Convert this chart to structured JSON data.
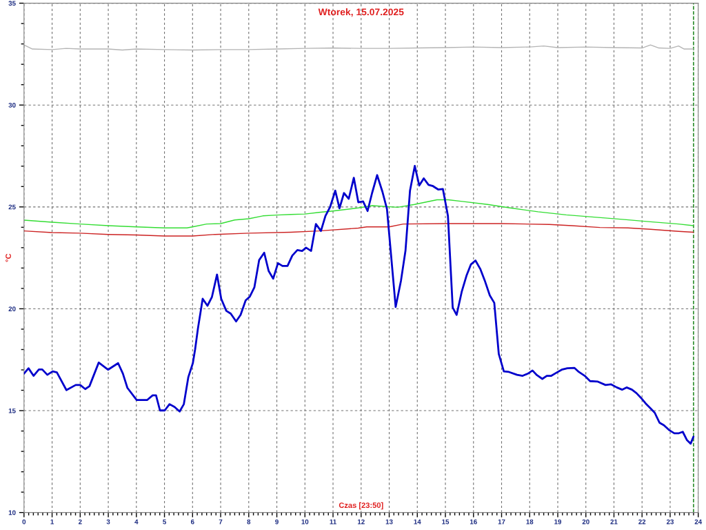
{
  "chart_data": {
    "type": "line",
    "title": "Wtorek, 15.07.2025",
    "xlabel": "Czas [23:50]",
    "ylabel": "°C",
    "xlim": [
      0,
      24
    ],
    "ylim": [
      10,
      35
    ],
    "grid": true,
    "legend": false,
    "marker": "none",
    "line_style": "solid",
    "xticks": [
      0,
      {
        "value": 0.1667,
        "label": null
      },
      {
        "value": 0.3333,
        "label": null
      },
      {
        "value": 0.5,
        "label": null
      },
      {
        "value": 0.6667,
        "label": null
      },
      {
        "value": 0.8333,
        "label": null
      },
      1,
      {
        "value": 1.1667,
        "label": null
      },
      {
        "value": 1.3333,
        "label": null
      },
      {
        "value": 1.5,
        "label": null
      },
      {
        "value": 1.6667,
        "label": null
      },
      {
        "value": 1.8333,
        "label": null
      },
      2,
      {
        "value": 2.1667,
        "label": null
      },
      {
        "value": 2.3333,
        "label": null
      },
      {
        "value": 2.5,
        "label": null
      },
      {
        "value": 2.6667,
        "label": null
      },
      {
        "value": 2.8333,
        "label": null
      },
      3,
      {
        "value": 3.1667,
        "label": null
      },
      {
        "value": 3.3333,
        "label": null
      },
      {
        "value": 3.5,
        "label": null
      },
      {
        "value": 3.6667,
        "label": null
      },
      {
        "value": 3.8333,
        "label": null
      },
      4,
      {
        "value": 4.1667,
        "label": null
      },
      {
        "value": 4.3333,
        "label": null
      },
      {
        "value": 4.5,
        "label": null
      },
      {
        "value": 4.6667,
        "label": null
      },
      {
        "value": 4.8333,
        "label": null
      },
      5,
      {
        "value": 5.1667,
        "label": null
      },
      {
        "value": 5.3333,
        "label": null
      },
      {
        "value": 5.5,
        "label": null
      },
      {
        "value": 5.6667,
        "label": null
      },
      {
        "value": 5.8333,
        "label": null
      },
      6,
      {
        "value": 6.1667,
        "label": null
      },
      {
        "value": 6.3333,
        "label": null
      },
      {
        "value": 6.5,
        "label": null
      },
      {
        "value": 6.6667,
        "label": null
      },
      {
        "value": 6.8333,
        "label": null
      },
      7,
      {
        "value": 7.1667,
        "label": null
      },
      {
        "value": 7.3333,
        "label": null
      },
      {
        "value": 7.5,
        "label": null
      },
      {
        "value": 7.6667,
        "label": null
      },
      {
        "value": 7.8333,
        "label": null
      },
      8,
      {
        "value": 8.1667,
        "label": null
      },
      {
        "value": 8.3333,
        "label": null
      },
      {
        "value": 8.5,
        "label": null
      },
      {
        "value": 8.6667,
        "label": null
      },
      {
        "value": 8.8333,
        "label": null
      },
      9,
      {
        "value": 9.1667,
        "label": null
      },
      {
        "value": 9.3333,
        "label": null
      },
      {
        "value": 9.5,
        "label": null
      },
      {
        "value": 9.6667,
        "label": null
      },
      {
        "value": 9.8333,
        "label": null
      },
      10,
      {
        "value": 10.1667,
        "label": null
      },
      {
        "value": 10.3333,
        "label": null
      },
      {
        "value": 10.5,
        "label": null
      },
      {
        "value": 10.6667,
        "label": null
      },
      {
        "value": 10.8333,
        "label": null
      },
      11,
      {
        "value": 11.1667,
        "label": null
      },
      {
        "value": 11.3333,
        "label": null
      },
      {
        "value": 11.5,
        "label": null
      },
      {
        "value": 11.6667,
        "label": null
      },
      {
        "value": 11.8333,
        "label": null
      },
      12,
      {
        "value": 12.1667,
        "label": null
      },
      {
        "value": 12.3333,
        "label": null
      },
      {
        "value": 12.5,
        "label": null
      },
      {
        "value": 12.6667,
        "label": null
      },
      {
        "value": 12.8333,
        "label": null
      },
      13,
      {
        "value": 13.1667,
        "label": null
      },
      {
        "value": 13.3333,
        "label": null
      },
      {
        "value": 13.5,
        "label": null
      },
      {
        "value": 13.6667,
        "label": null
      },
      {
        "value": 13.8333,
        "label": null
      },
      14,
      {
        "value": 14.1667,
        "label": null
      },
      {
        "value": 14.3333,
        "label": null
      },
      {
        "value": 14.5,
        "label": null
      },
      {
        "value": 14.6667,
        "label": null
      },
      {
        "value": 14.8333,
        "label": null
      },
      15,
      {
        "value": 15.1667,
        "label": null
      },
      {
        "value": 15.3333,
        "label": null
      },
      {
        "value": 15.5,
        "label": null
      },
      {
        "value": 15.6667,
        "label": null
      },
      {
        "value": 15.8333,
        "label": null
      },
      16,
      {
        "value": 16.1667,
        "label": null
      },
      {
        "value": 16.3333,
        "label": null
      },
      {
        "value": 16.5,
        "label": null
      },
      {
        "value": 16.6667,
        "label": null
      },
      {
        "value": 16.8333,
        "label": null
      },
      17,
      {
        "value": 17.1667,
        "label": null
      },
      {
        "value": 17.3333,
        "label": null
      },
      {
        "value": 17.5,
        "label": null
      },
      {
        "value": 17.6667,
        "label": null
      },
      {
        "value": 17.8333,
        "label": null
      },
      18,
      {
        "value": 18.1667,
        "label": null
      },
      {
        "value": 18.3333,
        "label": null
      },
      {
        "value": 18.5,
        "label": null
      },
      {
        "value": 18.6667,
        "label": null
      },
      {
        "value": 18.8333,
        "label": null
      },
      19,
      {
        "value": 19.1667,
        "label": null
      },
      {
        "value": 19.3333,
        "label": null
      },
      {
        "value": 19.5,
        "label": null
      },
      {
        "value": 19.6667,
        "label": null
      },
      {
        "value": 19.8333,
        "label": null
      },
      20,
      {
        "value": 20.1667,
        "label": null
      },
      {
        "value": 20.3333,
        "label": null
      },
      {
        "value": 20.5,
        "label": null
      },
      {
        "value": 20.6667,
        "label": null
      },
      {
        "value": 20.8333,
        "label": null
      },
      21,
      {
        "value": 21.1667,
        "label": null
      },
      {
        "value": 21.3333,
        "label": null
      },
      {
        "value": 21.5,
        "label": null
      },
      {
        "value": 21.6667,
        "label": null
      },
      {
        "value": 21.8333,
        "label": null
      },
      22,
      {
        "value": 22.1667,
        "label": null
      },
      {
        "value": 22.3333,
        "label": null
      },
      {
        "value": 22.5,
        "label": null
      },
      {
        "value": 22.6667,
        "label": null
      },
      {
        "value": 22.8333,
        "label": null
      },
      23,
      {
        "value": 23.1667,
        "label": null
      },
      {
        "value": 23.3333,
        "label": null
      },
      {
        "value": 23.5,
        "label": null
      },
      {
        "value": 23.6667,
        "label": null
      },
      {
        "value": 23.8333,
        "label": null
      },
      24
    ],
    "yticks": [
      10,
      {
        "value": 11,
        "label": null
      },
      {
        "value": 12,
        "label": null
      },
      {
        "value": 13,
        "label": null
      },
      {
        "value": 14,
        "label": null
      },
      15,
      {
        "value": 16,
        "label": null
      },
      {
        "value": 17,
        "label": null
      },
      {
        "value": 18,
        "label": null
      },
      {
        "value": 19,
        "label": null
      },
      20,
      {
        "value": 21,
        "label": null
      },
      {
        "value": 22,
        "label": null
      },
      {
        "value": 23,
        "label": null
      },
      {
        "value": 24,
        "label": null
      },
      25,
      {
        "value": 26,
        "label": null
      },
      {
        "value": 27,
        "label": null
      },
      {
        "value": 28,
        "label": null
      },
      {
        "value": 29,
        "label": null
      },
      30,
      {
        "value": 31,
        "label": null
      },
      {
        "value": 32,
        "label": null
      },
      {
        "value": 33,
        "label": null
      },
      {
        "value": 34,
        "label": null
      },
      35
    ],
    "ref_lines": [
      {
        "axis": "x",
        "value": 23.8333,
        "color": "#007700",
        "line_style": "dashed"
      }
    ],
    "series": [
      {
        "color": "#b4b4b4",
        "x": [
          0,
          0.3,
          1,
          1.5,
          2,
          3,
          3.5,
          4,
          5,
          6,
          7,
          8,
          9,
          10,
          11,
          12,
          13,
          14,
          15,
          16,
          17,
          18,
          18.5,
          19,
          20,
          21,
          22,
          22.3,
          22.6,
          23,
          23.3,
          23.5,
          23.83
        ],
        "values": [
          32.95,
          32.75,
          32.72,
          32.78,
          32.75,
          32.75,
          32.7,
          32.75,
          32.72,
          32.7,
          32.72,
          32.72,
          32.75,
          32.78,
          32.8,
          32.78,
          32.78,
          32.8,
          32.82,
          32.85,
          32.82,
          32.85,
          32.9,
          32.82,
          32.85,
          32.82,
          32.8,
          32.95,
          32.8,
          32.78,
          32.9,
          32.75,
          32.75
        ]
      },
      {
        "color": "#33dd33",
        "x": [
          0,
          1,
          2,
          3,
          4,
          5,
          5.8,
          6,
          6.5,
          7,
          7.5,
          8,
          8.5,
          9,
          9.5,
          10,
          10.5,
          11,
          11.9,
          12.4,
          13.3,
          13.9,
          14.7,
          15.1,
          15.6,
          16.5,
          17.3,
          18.3,
          19.3,
          20.3,
          21.3,
          22.3,
          23.3,
          23.83
        ],
        "values": [
          24.35,
          24.25,
          24.16,
          24.08,
          24.02,
          23.97,
          23.97,
          24.02,
          24.16,
          24.18,
          24.36,
          24.42,
          24.56,
          24.6,
          24.63,
          24.65,
          24.73,
          24.8,
          24.95,
          25.06,
          24.98,
          25.12,
          25.35,
          25.35,
          25.27,
          25.12,
          24.95,
          24.76,
          24.61,
          24.5,
          24.39,
          24.27,
          24.16,
          24.08
        ]
      },
      {
        "color": "#cc2222",
        "x": [
          0,
          1,
          2,
          3,
          4,
          5,
          6,
          6.8,
          8,
          9.5,
          10.5,
          11.9,
          12.2,
          13,
          13.5,
          15,
          17,
          18.7,
          19.5,
          20.5,
          21.5,
          22.3,
          23.3,
          23.83
        ],
        "values": [
          23.82,
          23.74,
          23.71,
          23.65,
          23.62,
          23.57,
          23.57,
          23.65,
          23.71,
          23.76,
          23.82,
          23.96,
          24.02,
          24.02,
          24.16,
          24.18,
          24.18,
          24.14,
          24.08,
          23.99,
          23.97,
          23.9,
          23.8,
          23.76
        ]
      },
      {
        "color": "#0000cc",
        "x": [
          0,
          0.16,
          0.34,
          0.53,
          0.65,
          0.83,
          1.02,
          1.17,
          1.51,
          1.84,
          2.0,
          2.18,
          2.33,
          2.66,
          2.99,
          3.35,
          3.52,
          3.68,
          4.01,
          4.38,
          4.58,
          4.7,
          4.84,
          5.01,
          5.18,
          5.36,
          5.54,
          5.69,
          5.85,
          6.01,
          6.09,
          6.19,
          6.36,
          6.53,
          6.69,
          6.87,
          7.02,
          7.2,
          7.36,
          7.55,
          7.71,
          7.89,
          8.04,
          8.2,
          8.37,
          8.55,
          8.71,
          8.87,
          9.04,
          9.2,
          9.38,
          9.55,
          9.73,
          9.9,
          10.04,
          10.22,
          10.39,
          10.57,
          10.73,
          10.9,
          11.08,
          11.23,
          11.39,
          11.56,
          11.74,
          11.9,
          12.07,
          12.23,
          12.39,
          12.57,
          12.76,
          12.92,
          13.23,
          13.42,
          13.58,
          13.74,
          13.91,
          14.07,
          14.23,
          14.4,
          14.56,
          14.75,
          14.91,
          15.09,
          15.26,
          15.4,
          15.58,
          15.75,
          15.91,
          16.07,
          16.24,
          16.4,
          16.58,
          16.74,
          16.9,
          17.08,
          17.26,
          17.55,
          17.75,
          17.94,
          18.1,
          18.26,
          18.45,
          18.61,
          18.77,
          18.94,
          19.14,
          19.34,
          19.59,
          19.75,
          19.96,
          20.15,
          20.41,
          20.7,
          20.9,
          21.1,
          21.29,
          21.45,
          21.64,
          21.8,
          21.96,
          22.13,
          22.29,
          22.45,
          22.62,
          22.78,
          22.96,
          23.15,
          23.31,
          23.45,
          23.6,
          23.73,
          23.83
        ],
        "values": [
          16.82,
          17.08,
          16.71,
          17.02,
          17.02,
          16.76,
          16.93,
          16.88,
          16.01,
          16.26,
          16.26,
          16.06,
          16.2,
          17.36,
          17.01,
          17.33,
          16.82,
          16.12,
          15.52,
          15.52,
          15.75,
          15.75,
          15.01,
          15.01,
          15.32,
          15.18,
          14.96,
          15.32,
          16.65,
          17.33,
          18.0,
          19.02,
          20.49,
          20.15,
          20.58,
          21.68,
          20.49,
          19.9,
          19.76,
          19.38,
          19.7,
          20.41,
          20.6,
          21.05,
          22.39,
          22.75,
          21.85,
          21.48,
          22.24,
          22.1,
          22.1,
          22.61,
          22.88,
          22.84,
          23.0,
          22.84,
          24.16,
          23.82,
          24.56,
          25.01,
          25.8,
          24.93,
          25.68,
          25.4,
          26.43,
          25.23,
          25.27,
          24.8,
          25.68,
          26.56,
          25.74,
          24.9,
          20.09,
          21.39,
          22.86,
          25.8,
          27.01,
          26.05,
          26.4,
          26.08,
          26.02,
          25.85,
          25.88,
          24.56,
          20.06,
          19.7,
          20.83,
          21.62,
          22.18,
          22.37,
          21.96,
          21.39,
          20.66,
          20.29,
          17.78,
          16.93,
          16.9,
          16.76,
          16.71,
          16.82,
          16.97,
          16.74,
          16.56,
          16.71,
          16.71,
          16.85,
          17.01,
          17.08,
          17.1,
          16.9,
          16.71,
          16.45,
          16.43,
          16.26,
          16.29,
          16.14,
          16.03,
          16.14,
          16.03,
          15.86,
          15.63,
          15.35,
          15.13,
          14.9,
          14.41,
          14.28,
          14.05,
          13.89,
          13.89,
          13.96,
          13.55,
          13.38,
          13.72
        ]
      }
    ]
  }
}
